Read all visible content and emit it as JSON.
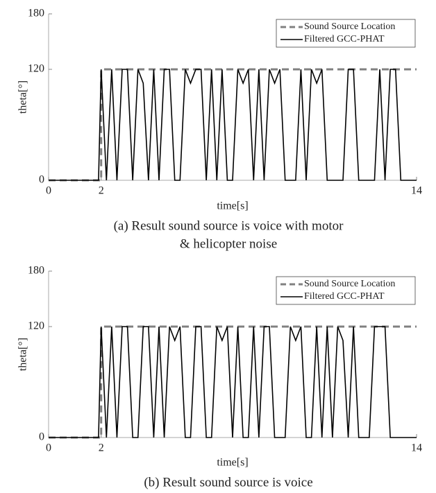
{
  "chart_data": [
    {
      "type": "line",
      "caption": [
        "(a) Result sound source is voice with motor",
        "& helicopter noise"
      ],
      "x_label": "time[s]",
      "y_label": "theta[°]",
      "xlim": [
        0,
        14
      ],
      "xticks": [
        0,
        2,
        14
      ],
      "ylim": [
        0,
        180
      ],
      "yticks": [
        0,
        120,
        180
      ],
      "grid": false,
      "legend": "upper right",
      "series": [
        {
          "name": "Sound Source Location",
          "color": "#808080",
          "dashed": true,
          "x": [
            0,
            2,
            2,
            14
          ],
          "values": [
            0,
            0,
            120,
            120
          ]
        },
        {
          "name": "Filtered GCC-PHAT",
          "color": "#000000",
          "dashed": false,
          "x": [
            0,
            1.9,
            2.0,
            2.2,
            2.4,
            2.6,
            2.8,
            3.0,
            3.2,
            3.4,
            3.6,
            3.8,
            4.0,
            4.2,
            4.4,
            4.6,
            4.8,
            5.0,
            5.2,
            5.4,
            5.6,
            5.8,
            6.0,
            6.2,
            6.4,
            6.6,
            6.8,
            7.0,
            7.2,
            7.4,
            7.6,
            7.8,
            8.0,
            8.2,
            8.4,
            8.6,
            8.8,
            9.0,
            9.2,
            9.4,
            9.6,
            9.8,
            10.0,
            10.2,
            10.4,
            10.6,
            10.8,
            11.0,
            11.2,
            11.4,
            11.6,
            11.8,
            12.0,
            12.2,
            12.4,
            12.6,
            12.8,
            13.0,
            13.2,
            13.4,
            13.6,
            13.8,
            14.0
          ],
          "values": [
            0,
            0,
            120,
            0,
            120,
            0,
            120,
            120,
            0,
            120,
            105,
            0,
            120,
            0,
            120,
            120,
            0,
            0,
            120,
            105,
            120,
            120,
            0,
            120,
            0,
            120,
            0,
            0,
            120,
            105,
            120,
            0,
            120,
            0,
            120,
            105,
            120,
            0,
            0,
            0,
            120,
            0,
            120,
            105,
            120,
            0,
            0,
            0,
            0,
            120,
            120,
            0,
            0,
            0,
            0,
            120,
            0,
            120,
            120,
            0,
            0,
            0,
            0
          ]
        }
      ]
    },
    {
      "type": "line",
      "caption": [
        "(b) Result sound source is voice"
      ],
      "x_label": "time[s]",
      "y_label": "theta[°]",
      "xlim": [
        0,
        14
      ],
      "xticks": [
        0,
        2,
        14
      ],
      "ylim": [
        0,
        180
      ],
      "yticks": [
        0,
        120,
        180
      ],
      "grid": false,
      "legend": "upper right",
      "series": [
        {
          "name": "Sound Source Location",
          "color": "#808080",
          "dashed": true,
          "x": [
            0,
            2,
            2,
            14
          ],
          "values": [
            0,
            0,
            120,
            120
          ]
        },
        {
          "name": "Filtered GCC-PHAT",
          "color": "#000000",
          "dashed": false,
          "x": [
            0,
            1.9,
            2.0,
            2.2,
            2.4,
            2.6,
            2.8,
            3.0,
            3.2,
            3.4,
            3.6,
            3.8,
            4.0,
            4.2,
            4.4,
            4.6,
            4.8,
            5.0,
            5.2,
            5.4,
            5.6,
            5.8,
            6.0,
            6.2,
            6.4,
            6.6,
            6.8,
            7.0,
            7.2,
            7.4,
            7.6,
            7.8,
            8.0,
            8.2,
            8.4,
            8.6,
            8.8,
            9.0,
            9.2,
            9.4,
            9.6,
            9.8,
            10.0,
            10.2,
            10.4,
            10.6,
            10.8,
            11.0,
            11.2,
            11.4,
            11.6,
            11.8,
            12.0,
            12.2,
            12.4,
            12.6,
            12.8,
            13.0,
            13.2,
            13.4,
            13.6,
            13.8,
            14.0
          ],
          "values": [
            0,
            0,
            120,
            0,
            120,
            0,
            120,
            120,
            0,
            0,
            120,
            120,
            0,
            120,
            0,
            120,
            105,
            120,
            0,
            0,
            120,
            120,
            0,
            0,
            120,
            105,
            120,
            0,
            120,
            0,
            0,
            120,
            0,
            120,
            120,
            0,
            0,
            0,
            120,
            105,
            120,
            0,
            0,
            120,
            0,
            120,
            0,
            120,
            105,
            0,
            120,
            0,
            0,
            0,
            120,
            120,
            120,
            0,
            0,
            0,
            0,
            0,
            0
          ]
        }
      ]
    }
  ]
}
